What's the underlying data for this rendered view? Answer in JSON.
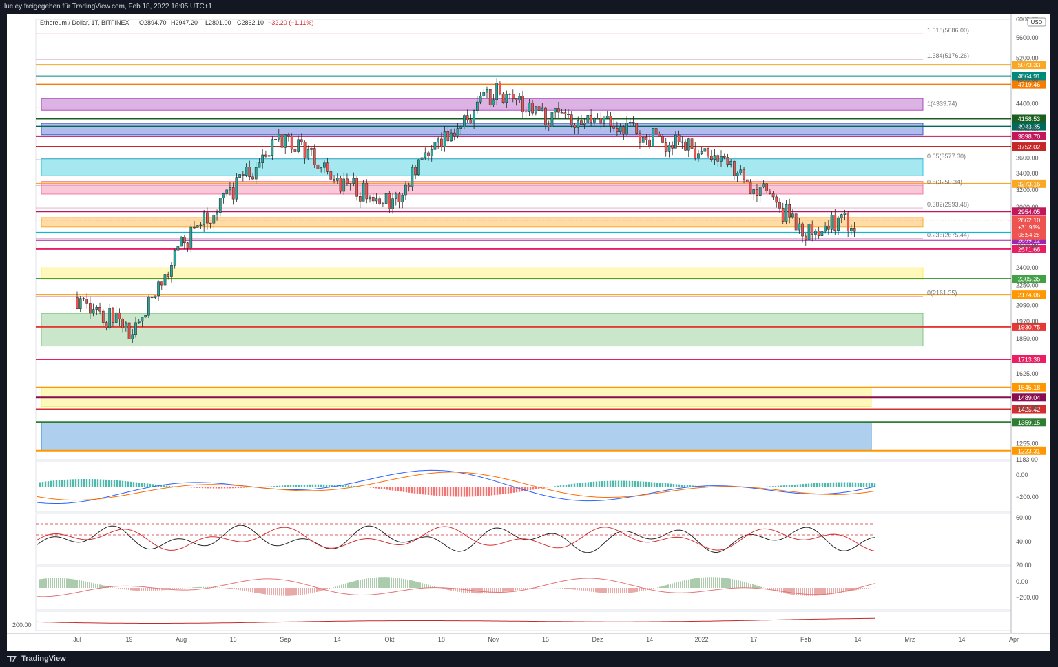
{
  "header": {
    "share_text": "lueley freigegeben für TradingView.com, Feb 18, 2022 16:05 UTC+1",
    "symbol_line": "Ethereum / Dollar, 1T, BITFINEX",
    "open": "O2894.70",
    "high": "H2947.20",
    "low": "L2801.00",
    "close": "C2862.10",
    "change": "−32.20 (−1.11%)"
  },
  "currency": "USD",
  "brand": "TradingView",
  "colors": {
    "up": "#26a69a",
    "down": "#ef5350",
    "grid": "#f0f3fa"
  },
  "chart_data": {
    "type": "candlestick",
    "title": "Ethereum / Dollar, 1T, BITFINEX",
    "price_scale": "log",
    "ylim": [
      1183,
      6000
    ],
    "x_ticks": [
      "Jul",
      "19",
      "Aug",
      "16",
      "Sep",
      "14",
      "Okt",
      "18",
      "Nov",
      "15",
      "Dez",
      "14",
      "2022",
      "17",
      "Feb",
      "14",
      "Mrz",
      "14",
      "Apr"
    ],
    "y_ticks": [
      "6000.00",
      "5600.00",
      "5200.00",
      "4800.00",
      "4400.00",
      "4000.00",
      "3600.00",
      "3400.00",
      "3200.00",
      "3000.00",
      "2800.00",
      "2600.00",
      "2400.00",
      "2250.00",
      "2090.00",
      "1970.00",
      "1850.00",
      "1625.00",
      "1435.00",
      "1255.00",
      "1183.00"
    ],
    "candle_anchors": [
      {
        "date": "Jul",
        "close": 2150
      },
      {
        "date": "19",
        "close": 1900
      },
      {
        "date": "Aug",
        "close": 2600
      },
      {
        "date": "16",
        "close": 3200
      },
      {
        "date": "Sep",
        "close": 3900
      },
      {
        "date": "14",
        "close": 3300
      },
      {
        "date": "Okt",
        "close": 3050
      },
      {
        "date": "18",
        "close": 3800
      },
      {
        "date": "Nov",
        "close": 4600
      },
      {
        "date": "15",
        "close": 4200
      },
      {
        "date": "Dez",
        "close": 4100
      },
      {
        "date": "14",
        "close": 3900
      },
      {
        "date": "2022",
        "close": 3700
      },
      {
        "date": "17",
        "close": 3250
      },
      {
        "date": "Feb",
        "close": 2750
      },
      {
        "date": "14",
        "close": 2862
      }
    ],
    "fib_levels": [
      {
        "label": "1.618(5686.00)",
        "price": 5686
      },
      {
        "label": "1.384(5176.26)",
        "price": 5176.26
      },
      {
        "label": "1(4339.74)",
        "price": 4339.74
      },
      {
        "label": "0.65(3577.30)",
        "price": 3577.3
      },
      {
        "label": "0.5(3250.34)",
        "price": 3250.34
      },
      {
        "label": "0.382(2993.48)",
        "price": 2993.48
      },
      {
        "label": "0.236(2675.44)",
        "price": 2675.44
      },
      {
        "label": "0(2161.35)",
        "price": 2161.35
      }
    ],
    "horizontal_levels": [
      {
        "label": "5073.33",
        "price": 5073.33,
        "color": "#f9a825"
      },
      {
        "label": "4864.91",
        "price": 4864.91,
        "color": "#00897b"
      },
      {
        "label": "4719.46",
        "price": 4719.46,
        "color": "#f57c00"
      },
      {
        "label": "4158.53",
        "price": 4158.53,
        "color": "#1b5e20"
      },
      {
        "label": "4043.35",
        "price": 4043.35,
        "color": "#00695c"
      },
      {
        "label": "3898.70",
        "price": 3898.7,
        "color": "#c2185b"
      },
      {
        "label": "3752.02",
        "price": 3752.02,
        "color": "#c62828"
      },
      {
        "label": "3273.16",
        "price": 3273.16,
        "color": "#f9a825"
      },
      {
        "label": "2954.05",
        "price": 2954.05,
        "color": "#c2185b"
      },
      {
        "label": "2733.26",
        "price": 2733.26,
        "color": "#00bcd4"
      },
      {
        "label": "2659.12",
        "price": 2659.12,
        "color": "#9c27b0"
      },
      {
        "label": "2571.68",
        "price": 2571.68,
        "color": "#e91e63"
      },
      {
        "label": "2305.35",
        "price": 2305.35,
        "color": "#43a047"
      },
      {
        "label": "2174.06",
        "price": 2174.06,
        "color": "#ff9800"
      },
      {
        "label": "1930.75",
        "price": 1930.75,
        "color": "#e53935"
      },
      {
        "label": "1713.38",
        "price": 1713.38,
        "color": "#e91e63"
      },
      {
        "label": "1545.18",
        "price": 1545.18,
        "color": "#ff9800"
      },
      {
        "label": "1489.04",
        "price": 1489.04,
        "color": "#880e4f"
      },
      {
        "label": "1425.42",
        "price": 1425.42,
        "color": "#d32f2f"
      },
      {
        "label": "1359.15",
        "price": 1359.15,
        "color": "#2e7d32"
      },
      {
        "label": "1223.31",
        "price": 1223.31,
        "color": "#ff9800"
      }
    ],
    "zones": [
      {
        "from": 4290,
        "to": 4480,
        "color": "#9c27b0"
      },
      {
        "from": 3920,
        "to": 4090,
        "color": "#1e40c8"
      },
      {
        "from": 3370,
        "to": 3590,
        "color": "#00bcd4"
      },
      {
        "from": 3150,
        "to": 3300,
        "color": "#f06292"
      },
      {
        "from": 2790,
        "to": 2890,
        "color": "#ff9800"
      },
      {
        "from": 2300,
        "to": 2400,
        "color": "#ffeb3b"
      },
      {
        "from": 1800,
        "to": 2030,
        "color": "#66bb6a"
      },
      {
        "from": 1440,
        "to": 1545,
        "color": "#ffeb3b"
      },
      {
        "from": 1223,
        "to": 1359,
        "color": "#1976d2"
      }
    ],
    "last_price": {
      "label": "2862.10",
      "change": "+31.95%",
      "countdown": "08:54:28"
    },
    "macd_ticks": [
      "0.00",
      "−200.00"
    ],
    "rsi_ticks": [
      "60.00",
      "40.00",
      "20.00"
    ],
    "osc_ticks": [
      "0.00",
      "−200.00"
    ],
    "bottom_pane_tick": "200.00"
  }
}
